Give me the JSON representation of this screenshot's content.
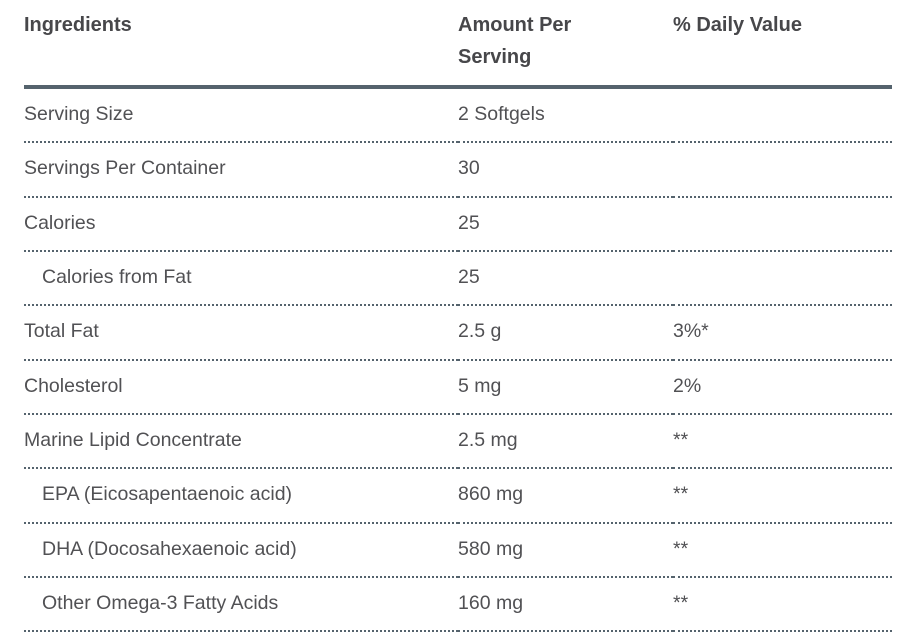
{
  "colors": {
    "background": "#ffffff",
    "rule_solid": "#55636d",
    "rule_dotted": "#55636d",
    "header_text": "#47474a",
    "body_text": "#515154"
  },
  "table": {
    "columns": [
      {
        "id": "ingredients",
        "label": "Ingredients"
      },
      {
        "id": "amount_per_serving",
        "label": "Amount Per Serving"
      },
      {
        "id": "daily_value",
        "label": "% Daily Value"
      }
    ],
    "rows": [
      {
        "ingredient": "Serving Size",
        "amount": "2 Softgels",
        "daily_value": "",
        "indented": false
      },
      {
        "ingredient": "Servings Per Container",
        "amount": "30",
        "daily_value": "",
        "indented": false
      },
      {
        "ingredient": "Calories",
        "amount": "25",
        "daily_value": "",
        "indented": false
      },
      {
        "ingredient": "Calories from Fat",
        "amount": "25",
        "daily_value": "",
        "indented": true
      },
      {
        "ingredient": "Total Fat",
        "amount": "2.5 g",
        "daily_value": "3%*",
        "indented": false
      },
      {
        "ingredient": "Cholesterol",
        "amount": "5 mg",
        "daily_value": "2%",
        "indented": false
      },
      {
        "ingredient": "Marine Lipid Concentrate",
        "amount": "2.5 mg",
        "daily_value": "**",
        "indented": false
      },
      {
        "ingredient": "EPA (Eicosapentaenoic acid)",
        "amount": "860 mg",
        "daily_value": "**",
        "indented": true
      },
      {
        "ingredient": "DHA (Docosahexaenoic acid)",
        "amount": "580 mg",
        "daily_value": "**",
        "indented": true
      },
      {
        "ingredient": "Other Omega-3 Fatty Acids",
        "amount": "160 mg",
        "daily_value": "**",
        "indented": true
      }
    ]
  }
}
